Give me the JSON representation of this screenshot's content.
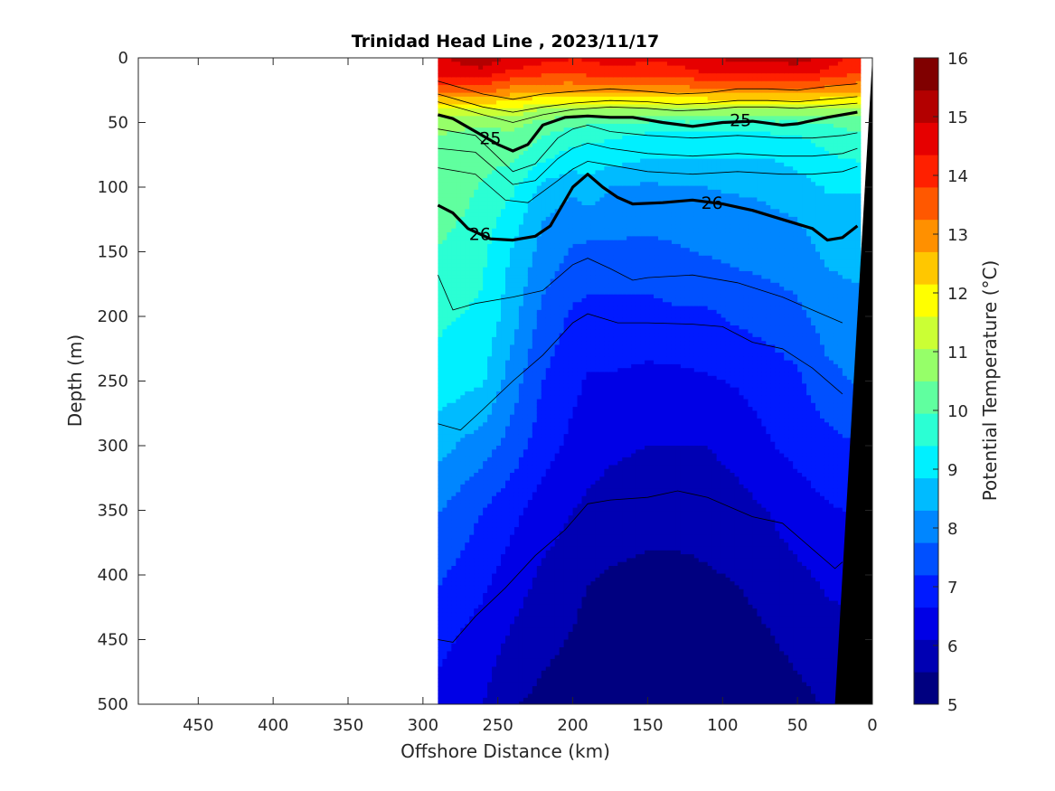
{
  "chart_data": {
    "type": "contour",
    "title": "Trinidad Head Line , 2023/11/17",
    "xlabel": "Offshore Distance (km)",
    "ylabel": "Depth (m)",
    "xlim": [
      490,
      0
    ],
    "ylim": [
      500,
      0
    ],
    "x_reversed": true,
    "y_reversed": true,
    "x_ticks": [
      450,
      400,
      350,
      300,
      250,
      200,
      150,
      100,
      50,
      0
    ],
    "y_ticks": [
      0,
      50,
      100,
      150,
      200,
      250,
      300,
      350,
      400,
      450,
      500
    ],
    "colorbar": {
      "label": "Potential Temperature (°C)",
      "range": [
        5,
        16
      ],
      "ticks": [
        5,
        6,
        7,
        8,
        9,
        10,
        11,
        12,
        13,
        14,
        15,
        16
      ],
      "colormap": "jet",
      "colors": [
        "#000080",
        "#0000b3",
        "#0000e6",
        "#001aff",
        "#0050ff",
        "#0086ff",
        "#00bbff",
        "#00f0ff",
        "#2bffd4",
        "#60ff9f",
        "#96ff69",
        "#cbff34",
        "#ffff00",
        "#ffc700",
        "#ff9000",
        "#ff5800",
        "#ff2000",
        "#e60000",
        "#b30000",
        "#800000"
      ],
      "position": "right"
    },
    "data_extent": {
      "x_min": 10,
      "x_max": 290,
      "y_max": 500
    },
    "temperature_field": {
      "x": [
        290,
        260,
        240,
        220,
        200,
        190,
        175,
        150,
        130,
        110,
        90,
        70,
        50,
        30,
        10
      ],
      "depth": [
        0,
        10,
        25,
        40,
        50,
        60,
        80,
        100,
        125,
        150,
        200,
        250,
        300,
        350,
        400,
        450,
        500
      ],
      "values_degC": [
        [
          14.8,
          15.3,
          14.8,
          14.5,
          14.4,
          14.4,
          14.6,
          14.5,
          14.5,
          14.9,
          15.0,
          15.0,
          15.2,
          14.6,
          14.2
        ],
        [
          14.6,
          14.8,
          14.3,
          14.1,
          14.0,
          14.1,
          14.2,
          14.1,
          14.2,
          14.5,
          14.6,
          14.6,
          14.6,
          14.3,
          14.0
        ],
        [
          13.5,
          13.5,
          13.0,
          12.8,
          12.8,
          12.9,
          13.0,
          13.0,
          13.0,
          13.1,
          13.2,
          13.2,
          13.2,
          13.0,
          12.8
        ],
        [
          11.5,
          11.5,
          11.5,
          11.0,
          10.9,
          10.9,
          10.9,
          10.9,
          10.9,
          10.9,
          10.9,
          10.9,
          10.9,
          11.0,
          11.0
        ],
        [
          10.7,
          10.6,
          10.7,
          10.3,
          10.2,
          10.1,
          10.0,
          9.9,
          9.9,
          9.9,
          9.9,
          9.9,
          9.9,
          10.0,
          10.2
        ],
        [
          10.5,
          10.3,
          10.4,
          10.0,
          9.6,
          9.5,
          9.5,
          9.3,
          9.3,
          9.3,
          9.3,
          9.3,
          9.4,
          9.6,
          9.9
        ],
        [
          10.3,
          10.1,
          10.0,
          9.4,
          9.1,
          9.2,
          9.0,
          8.8,
          8.8,
          8.8,
          8.8,
          8.8,
          9.0,
          9.3,
          9.4
        ],
        [
          10.4,
          9.9,
          9.5,
          8.7,
          8.4,
          8.6,
          8.3,
          8.2,
          8.3,
          8.3,
          8.4,
          8.4,
          8.6,
          8.9,
          8.9
        ],
        [
          10.2,
          9.7,
          9.1,
          8.3,
          8.0,
          8.1,
          8.0,
          7.9,
          7.9,
          8.0,
          8.0,
          8.2,
          8.3,
          8.6,
          8.7
        ],
        [
          9.9,
          9.5,
          8.8,
          8.1,
          7.7,
          7.6,
          7.6,
          7.6,
          7.7,
          7.8,
          7.9,
          8.0,
          8.1,
          8.4,
          8.5
        ],
        [
          9.5,
          9.3,
          8.5,
          7.6,
          7.1,
          7.0,
          7.0,
          7.0,
          7.1,
          7.1,
          7.3,
          7.4,
          7.6,
          8.0,
          8.1
        ],
        [
          9.2,
          8.9,
          8.0,
          7.2,
          6.8,
          6.6,
          6.6,
          6.5,
          6.5,
          6.6,
          6.7,
          6.9,
          7.1,
          7.6,
          7.8
        ],
        [
          8.5,
          8.0,
          7.5,
          6.9,
          6.5,
          6.3,
          6.2,
          6.1,
          6.1,
          6.1,
          6.3,
          6.6,
          6.8,
          7.0,
          7.2
        ],
        [
          7.8,
          7.2,
          6.8,
          6.4,
          6.1,
          6.0,
          5.9,
          5.8,
          5.8,
          5.8,
          5.9,
          6.1,
          6.4,
          6.6,
          6.7
        ],
        [
          7.3,
          6.8,
          6.4,
          6.0,
          5.8,
          5.6,
          5.5,
          5.4,
          5.4,
          5.5,
          5.6,
          5.8,
          6.0,
          6.2,
          6.3
        ],
        [
          6.8,
          6.4,
          6.0,
          5.7,
          5.5,
          5.3,
          5.2,
          5.1,
          5.1,
          5.2,
          5.3,
          5.5,
          5.7,
          5.9,
          6.0
        ],
        [
          6.5,
          6.1,
          5.6,
          5.4,
          5.3,
          5.2,
          5.0,
          4.9,
          4.9,
          5.0,
          5.1,
          5.2,
          5.4,
          5.6,
          5.8
        ]
      ]
    },
    "density_contours": [
      {
        "label": "25",
        "bold": true,
        "x": [
          290,
          280,
          265,
          250,
          240,
          230,
          220,
          205,
          190,
          175,
          160,
          140,
          120,
          100,
          80,
          60,
          50,
          30,
          10
        ],
        "depth": [
          44,
          47,
          57,
          67,
          72,
          67,
          52,
          46,
          45,
          46,
          46,
          50,
          53,
          50,
          49,
          52,
          51,
          46,
          42
        ],
        "label_positions": [
          [
            255,
            62
          ],
          [
            88,
            48
          ]
        ]
      },
      {
        "label": "26",
        "bold": true,
        "x": [
          290,
          280,
          270,
          255,
          240,
          225,
          215,
          200,
          190,
          180,
          170,
          160,
          140,
          120,
          100,
          80,
          60,
          40,
          30,
          20,
          10
        ],
        "depth": [
          114,
          120,
          132,
          140,
          141,
          138,
          130,
          100,
          90,
          100,
          108,
          113,
          112,
          110,
          113,
          118,
          125,
          132,
          141,
          139,
          130
        ],
        "label_positions": [
          [
            262,
            136
          ],
          [
            107,
            112
          ]
        ]
      }
    ],
    "thin_contours": [
      {
        "x": [
          290,
          260,
          240,
          220,
          200,
          175,
          150,
          130,
          110,
          90,
          70,
          50,
          30,
          10
        ],
        "depth": [
          18,
          28,
          32,
          28,
          26,
          24,
          26,
          28,
          27,
          24,
          24,
          25,
          22,
          20
        ]
      },
      {
        "x": [
          290,
          260,
          240,
          220,
          200,
          175,
          150,
          130,
          110,
          90,
          70,
          50,
          30,
          10
        ],
        "depth": [
          28,
          38,
          42,
          38,
          35,
          33,
          34,
          36,
          35,
          33,
          33,
          34,
          32,
          30
        ]
      },
      {
        "x": [
          290,
          260,
          240,
          220,
          200,
          175,
          150,
          130,
          110,
          90,
          70,
          50,
          30,
          10
        ],
        "depth": [
          34,
          44,
          50,
          44,
          40,
          38,
          39,
          41,
          40,
          38,
          38,
          39,
          37,
          35
        ]
      },
      {
        "x": [
          290,
          265,
          240,
          225,
          210,
          200,
          190,
          175,
          150,
          120,
          90,
          60,
          40,
          20,
          10
        ],
        "depth": [
          55,
          60,
          88,
          82,
          62,
          55,
          52,
          57,
          60,
          62,
          60,
          62,
          62,
          60,
          58
        ]
      },
      {
        "x": [
          290,
          265,
          240,
          225,
          210,
          200,
          190,
          175,
          150,
          120,
          90,
          60,
          40,
          20,
          10
        ],
        "depth": [
          70,
          73,
          98,
          95,
          78,
          70,
          66,
          70,
          74,
          76,
          74,
          76,
          76,
          74,
          70
        ]
      },
      {
        "x": [
          290,
          265,
          245,
          230,
          210,
          200,
          190,
          175,
          150,
          120,
          90,
          60,
          40,
          20,
          10
        ],
        "depth": [
          85,
          90,
          110,
          112,
          95,
          86,
          80,
          83,
          88,
          90,
          88,
          90,
          90,
          88,
          84
        ]
      },
      {
        "x": [
          290,
          280,
          265,
          240,
          220,
          200,
          190,
          175,
          160,
          150,
          120,
          90,
          60,
          40,
          20
        ],
        "depth": [
          168,
          195,
          190,
          185,
          180,
          160,
          155,
          163,
          172,
          170,
          168,
          174,
          185,
          195,
          205
        ]
      },
      {
        "x": [
          290,
          275,
          260,
          240,
          220,
          200,
          190,
          170,
          150,
          120,
          100,
          80,
          60,
          40,
          20
        ],
        "depth": [
          283,
          288,
          272,
          250,
          230,
          205,
          198,
          205,
          205,
          206,
          208,
          220,
          225,
          240,
          260
        ]
      },
      {
        "x": [
          290,
          280,
          265,
          245,
          225,
          205,
          190,
          175,
          150,
          130,
          110,
          80,
          60,
          40,
          25,
          20
        ],
        "depth": [
          450,
          452,
          432,
          410,
          385,
          365,
          345,
          342,
          340,
          335,
          340,
          355,
          360,
          380,
          395,
          390
        ]
      }
    ],
    "bathymetry": {
      "description": "seafloor (black)",
      "x": [
        0,
        0,
        25
      ],
      "depth": [
        0,
        500,
        500
      ]
    }
  }
}
